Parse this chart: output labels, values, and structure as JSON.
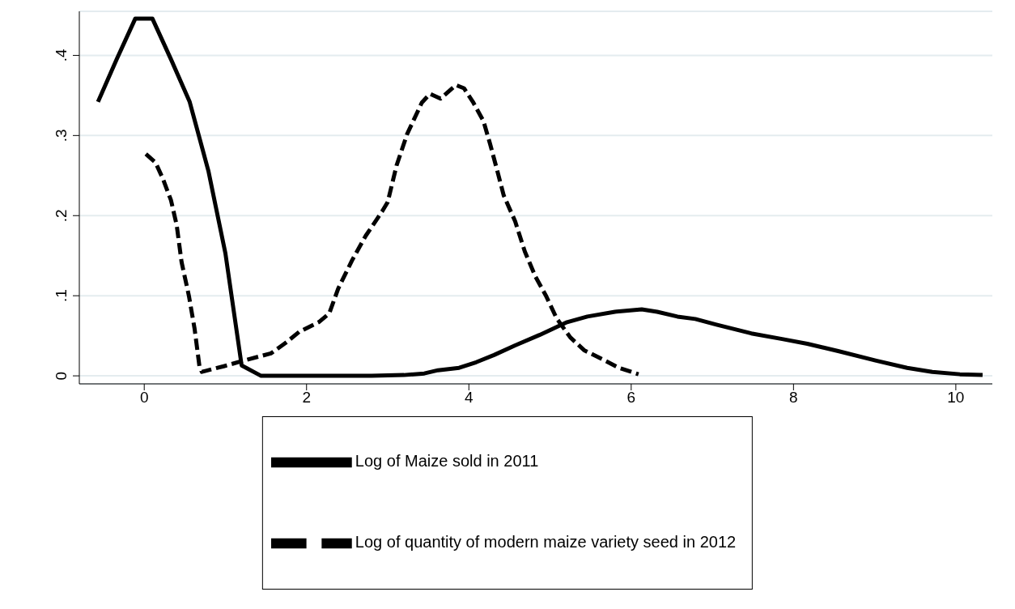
{
  "chart_data": {
    "type": "line",
    "xlim": [
      -0.8,
      10.45
    ],
    "xticks": [
      0,
      2,
      4,
      6,
      8,
      10
    ],
    "ylim": [
      -0.01,
      0.455
    ],
    "yticks": [
      {
        "value": 0,
        "label": "0"
      },
      {
        "value": 0.1,
        "label": ".1"
      },
      {
        "value": 0.2,
        "label": ".2"
      },
      {
        "value": 0.3,
        "label": ".3"
      },
      {
        "value": 0.4,
        "label": ".4"
      }
    ],
    "grid": "y",
    "legend": "bottom",
    "series": [
      {
        "name": "Log of Maize sold in 2011",
        "color": "#000000",
        "line_style": "solid",
        "x": [
          -0.57,
          -0.34,
          -0.11,
          0.1,
          0.33,
          0.56,
          0.79,
          1.0,
          1.2,
          1.44,
          2.0,
          2.8,
          3.2,
          3.45,
          3.62,
          3.88,
          4.09,
          4.31,
          4.57,
          4.87,
          5.21,
          5.46,
          5.8,
          6.13,
          6.32,
          6.57,
          6.79,
          7.05,
          7.48,
          7.86,
          8.17,
          8.55,
          9.02,
          9.4,
          9.71,
          10.05,
          10.33
        ],
        "values": [
          0.342,
          0.395,
          0.446,
          0.446,
          0.395,
          0.342,
          0.256,
          0.153,
          0.013,
          0,
          0,
          0,
          0.001,
          0.003,
          0.007,
          0.01,
          0.017,
          0.026,
          0.038,
          0.051,
          0.067,
          0.074,
          0.08,
          0.083,
          0.08,
          0.074,
          0.071,
          0.064,
          0.053,
          0.046,
          0.04,
          0.031,
          0.019,
          0.01,
          0.005,
          0.002,
          0.001
        ]
      },
      {
        "name": "Log of quantity of modern maize variety seed in 2012",
        "color": "#000000",
        "line_style": "dashed",
        "x": [
          0.02,
          0.14,
          0.23,
          0.33,
          0.4,
          0.46,
          0.55,
          0.62,
          0.68,
          0.71,
          0.98,
          1.26,
          1.56,
          1.74,
          1.91,
          2.15,
          2.28,
          2.39,
          2.56,
          2.73,
          2.93,
          3.0,
          3.11,
          3.24,
          3.42,
          3.52,
          3.65,
          3.84,
          3.94,
          4.05,
          4.18,
          4.26,
          4.35,
          4.43,
          4.57,
          4.69,
          4.82,
          4.95,
          5.08,
          5.25,
          5.42,
          5.64,
          5.85,
          6.09
        ],
        "values": [
          0.277,
          0.266,
          0.246,
          0.219,
          0.188,
          0.142,
          0.1,
          0.059,
          0.012,
          0.005,
          0.012,
          0.02,
          0.028,
          0.041,
          0.055,
          0.067,
          0.078,
          0.109,
          0.144,
          0.175,
          0.205,
          0.217,
          0.263,
          0.302,
          0.341,
          0.352,
          0.346,
          0.363,
          0.359,
          0.342,
          0.318,
          0.29,
          0.256,
          0.225,
          0.193,
          0.155,
          0.124,
          0.1,
          0.072,
          0.048,
          0.032,
          0.021,
          0.01,
          0.002
        ]
      }
    ]
  }
}
